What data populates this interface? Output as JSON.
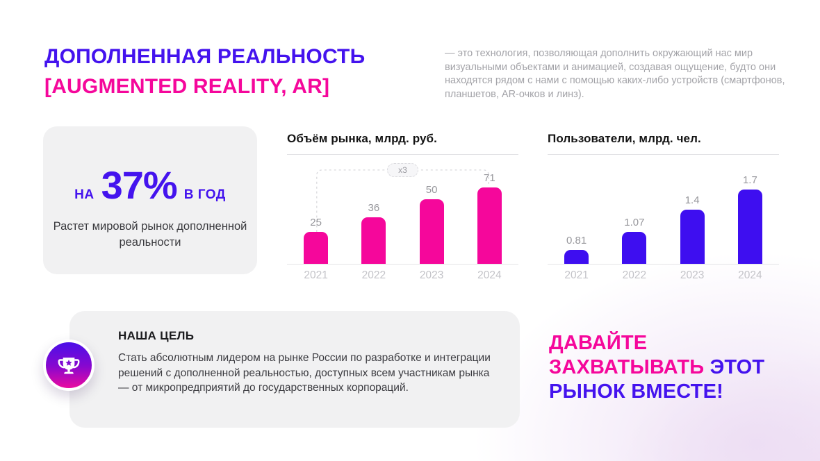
{
  "header": {
    "title_line1": "ДОПОЛНЕННАЯ РЕАЛЬНОСТЬ",
    "title_line2": "[AUGMENTED REALITY, AR]",
    "description": "— это технология, позволяющая дополнить окружающий нас мир визуальными объектами и анимацией, создавая ощущение, будто они находятся рядом с нами с помощью каких-либо устройств (смартфонов, планшетов, AR-очков и линз)."
  },
  "stat_card": {
    "prefix": "НА",
    "value": "37%",
    "suffix": "В ГОД",
    "caption": "Растет мировой рынок дополненной реальности"
  },
  "chart_data": [
    {
      "type": "bar",
      "title": "Объём рынка, млрд. руб.",
      "categories": [
        "2021",
        "2022",
        "2023",
        "2024"
      ],
      "values": [
        25,
        36,
        50,
        71
      ],
      "bar_color": "#F5079B",
      "annotation": "x3",
      "legend": "none",
      "grid": "off"
    },
    {
      "type": "bar",
      "title": "Пользователи, млрд. чел.",
      "categories": [
        "2021",
        "2022",
        "2023",
        "2024"
      ],
      "values": [
        0.81,
        1.07,
        1.4,
        1.7
      ],
      "bar_color": "#3E0EF0",
      "legend": "none",
      "grid": "off"
    }
  ],
  "goal_card": {
    "heading": "НАША ЦЕЛЬ",
    "body": "Стать абсолютным лидером на рынке России по разработке и интеграции решений с дополненной реальностью, доступных всем участникам рынка — от микропредприятий до государственных корпораций.",
    "icon": "trophy-icon"
  },
  "cta": {
    "pink_text": "ДАВАЙТЕ ЗАХВАТЫВАТЬ",
    "blue_text": "ЭТОТ РЫНОК ВМЕСТЕ!"
  },
  "colors": {
    "accent_blue": "#4413EE",
    "accent_pink": "#F5079B",
    "muted_text": "#A3A3A8",
    "card_bg": "#F1F1F2"
  }
}
